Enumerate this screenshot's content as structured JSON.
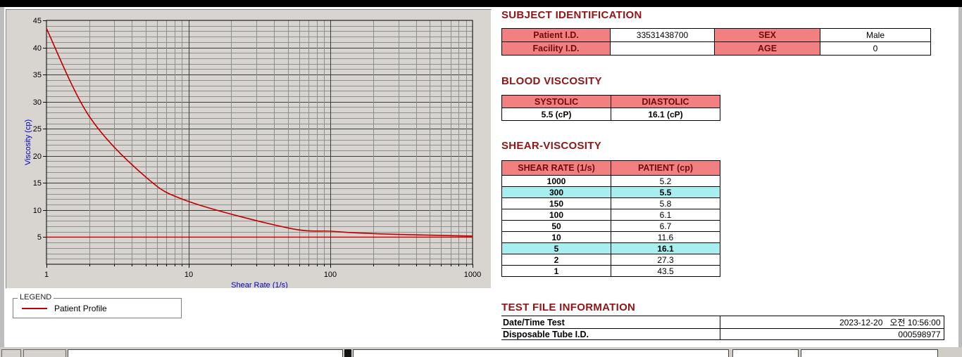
{
  "subject": {
    "title": "SUBJECT IDENTIFICATION",
    "patient_id_label": "Patient I.D.",
    "patient_id": "33531438700",
    "sex_label": "SEX",
    "sex": "Male",
    "facility_id_label": "Facility I.D.",
    "facility_id": "",
    "age_label": "AGE",
    "age": "0"
  },
  "blood_viscosity": {
    "title": "BLOOD VISCOSITY",
    "systolic_label": "SYSTOLIC",
    "diastolic_label": "DIASTOLIC",
    "systolic_value": "5.5 (cP)",
    "diastolic_value": "16.1 (cP)"
  },
  "shear_viscosity": {
    "title": "SHEAR-VISCOSITY",
    "col1_header": "SHEAR RATE (1/s)",
    "col2_header": "PATIENT (cp)",
    "rows": [
      {
        "rate": "1000",
        "value": "5.2",
        "highlight": false
      },
      {
        "rate": "300",
        "value": "5.5",
        "highlight": true
      },
      {
        "rate": "150",
        "value": "5.8",
        "highlight": false
      },
      {
        "rate": "100",
        "value": "6.1",
        "highlight": false
      },
      {
        "rate": "50",
        "value": "6.7",
        "highlight": false
      },
      {
        "rate": "10",
        "value": "11.6",
        "highlight": false
      },
      {
        "rate": "5",
        "value": "16.1",
        "highlight": true
      },
      {
        "rate": "2",
        "value": "27.3",
        "highlight": false
      },
      {
        "rate": "1",
        "value": "43.5",
        "highlight": false
      }
    ]
  },
  "test_file": {
    "title": "TEST FILE INFORMATION",
    "date_label": "Date/Time Test",
    "date_value": "2023-12-20   오전 10:56:00",
    "tube_label": "Disposable Tube I.D.",
    "tube_value": "000598977"
  },
  "legend": {
    "box_label": "LEGEND",
    "series_label": "Patient Profile"
  },
  "colors": {
    "section_title": "#8e1616",
    "table_header_bg": "#f28080",
    "highlight_bg": "#a6eef0",
    "series_red": "#c00000",
    "axis_title_blue": "#0000bb"
  },
  "chart_data": {
    "type": "line",
    "title": "",
    "xlabel": "Shear Rate (1/s)",
    "ylabel": "Viscosity (cp)",
    "x_scale": "log10",
    "xlim": [
      1,
      1000
    ],
    "ylim": [
      0,
      45
    ],
    "x_ticks": [
      1,
      10,
      100,
      1000
    ],
    "y_ticks": [
      5,
      10,
      15,
      20,
      25,
      30,
      35,
      40,
      45
    ],
    "grid": "both-with-minors",
    "legend_position": "below-left",
    "series": [
      {
        "name": "Patient Profile",
        "color": "#c00000",
        "x": [
          1,
          2,
          5,
          10,
          50,
          100,
          150,
          300,
          1000
        ],
        "y": [
          43.5,
          27.3,
          16.1,
          11.6,
          6.7,
          6.1,
          5.8,
          5.5,
          5.2
        ]
      }
    ],
    "reference_line": {
      "y": 5,
      "color": "#c00000"
    }
  }
}
